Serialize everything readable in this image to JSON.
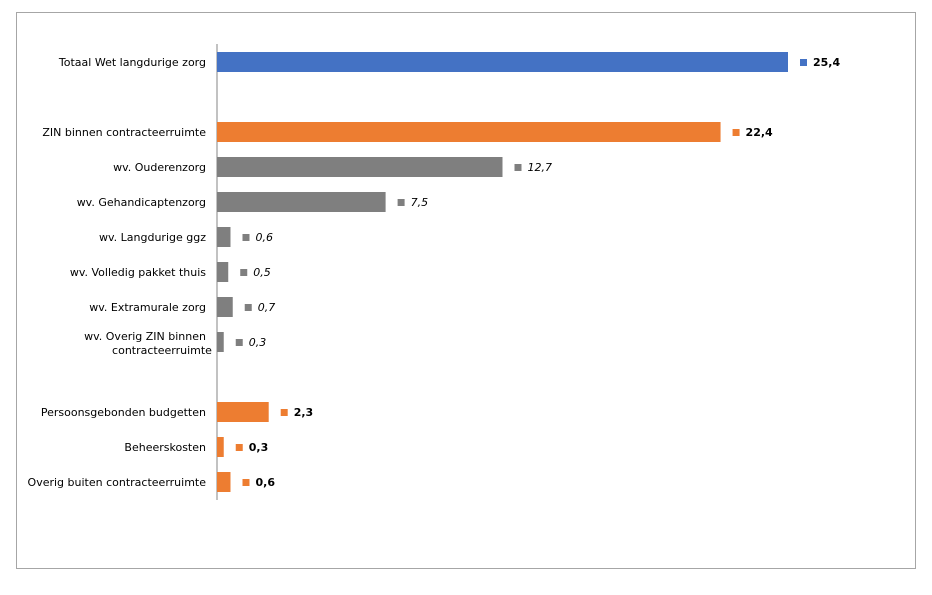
{
  "chart_data": {
    "type": "bar",
    "orientation": "horizontal",
    "title": "",
    "xlabel": "",
    "ylabel": "",
    "xlim": [
      0,
      25.4
    ],
    "grid": false,
    "categories": [
      "Totaal Wet langdurige zorg",
      "ZIN binnen contracteerruimte",
      "wv. Ouderenzorg",
      "wv. Gehandicaptenzorg",
      "wv. Langdurige ggz",
      "wv. Volledig pakket thuis",
      "wv. Extramurale zorg",
      "wv. Overig ZIN binnen contracteerruimte",
      "Persoonsgebonden budgetten",
      "Beheerskosten",
      "Overig buiten contracteerruimte"
    ],
    "values": [
      25.4,
      22.4,
      12.7,
      7.5,
      0.6,
      0.5,
      0.7,
      0.3,
      2.3,
      0.3,
      0.6
    ],
    "value_labels": [
      "25,4",
      "22,4",
      "12,7",
      "7,5",
      "0,6",
      "0,5",
      "0,7",
      "0,3",
      "2,3",
      "0,3",
      "0,6"
    ],
    "groups": [
      "total",
      "main",
      "sub",
      "sub",
      "sub",
      "sub",
      "sub",
      "sub",
      "main",
      "main",
      "main"
    ],
    "colors": {
      "total": "#4472c4",
      "main": "#ed7d31",
      "sub": "#7f7f7f"
    }
  }
}
